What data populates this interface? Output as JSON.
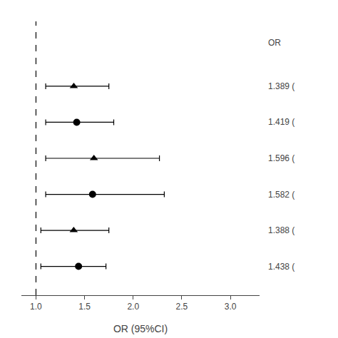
{
  "chart_data": {
    "type": "forest",
    "x_label": "OR (95%CI)",
    "series": [
      {
        "marker": "triangle",
        "color": "#000000",
        "x": [
          1.389
        ],
        "y": [
          6
        ],
        "xerr_low": [
          0.289
        ],
        "xerr_high": [
          0.361
        ]
      },
      {
        "marker": "circle",
        "color": "#000000",
        "x": [
          1.419
        ],
        "y": [
          5
        ],
        "xerr_low": [
          0.319
        ],
        "xerr_high": [
          0.381
        ]
      },
      {
        "marker": "triangle",
        "color": "#000000",
        "x": [
          1.596
        ],
        "y": [
          4
        ],
        "xerr_low": [
          0.496
        ],
        "xerr_high": [
          0.674
        ]
      },
      {
        "marker": "circle",
        "color": "#000000",
        "x": [
          1.582
        ],
        "y": [
          3
        ],
        "xerr_low": [
          0.482
        ],
        "xerr_high": [
          0.738
        ]
      },
      {
        "marker": "triangle",
        "color": "#000000",
        "x": [
          1.388
        ],
        "y": [
          2
        ],
        "xerr_low": [
          0.338
        ],
        "xerr_high": [
          0.362
        ]
      },
      {
        "marker": "circle",
        "color": "#000000",
        "x": [
          1.438
        ],
        "y": [
          1
        ],
        "xerr_low": [
          0.388
        ],
        "xerr_high": [
          0.282
        ]
      }
    ],
    "vline": {
      "x": 1.0,
      "line_style": "dashed",
      "color": "#000000"
    },
    "xlim": [
      0.85,
      3.3
    ],
    "xticks": [
      {
        "value": 1.0,
        "label": "1.0"
      },
      {
        "value": 1.5,
        "label": "1.5"
      },
      {
        "value": 2.0,
        "label": "2.0"
      },
      {
        "value": 2.5,
        "label": "2.5"
      },
      {
        "value": 3.0,
        "label": "3.0"
      }
    ],
    "ylim": [
      0.2,
      7.8
    ],
    "yticks": [],
    "tick_labels": "x",
    "grid": false,
    "annotations": [
      {
        "text": "OR",
        "y": 7.2
      },
      {
        "text": "1.389 (",
        "y": 6.0
      },
      {
        "text": "1.419 (",
        "y": 5.0
      },
      {
        "text": "1.596 (",
        "y": 4.0
      },
      {
        "text": "1.582 (",
        "y": 3.0
      },
      {
        "text": "1.388 (",
        "y": 2.0
      },
      {
        "text": "1.438 (",
        "y": 1.0
      }
    ]
  }
}
